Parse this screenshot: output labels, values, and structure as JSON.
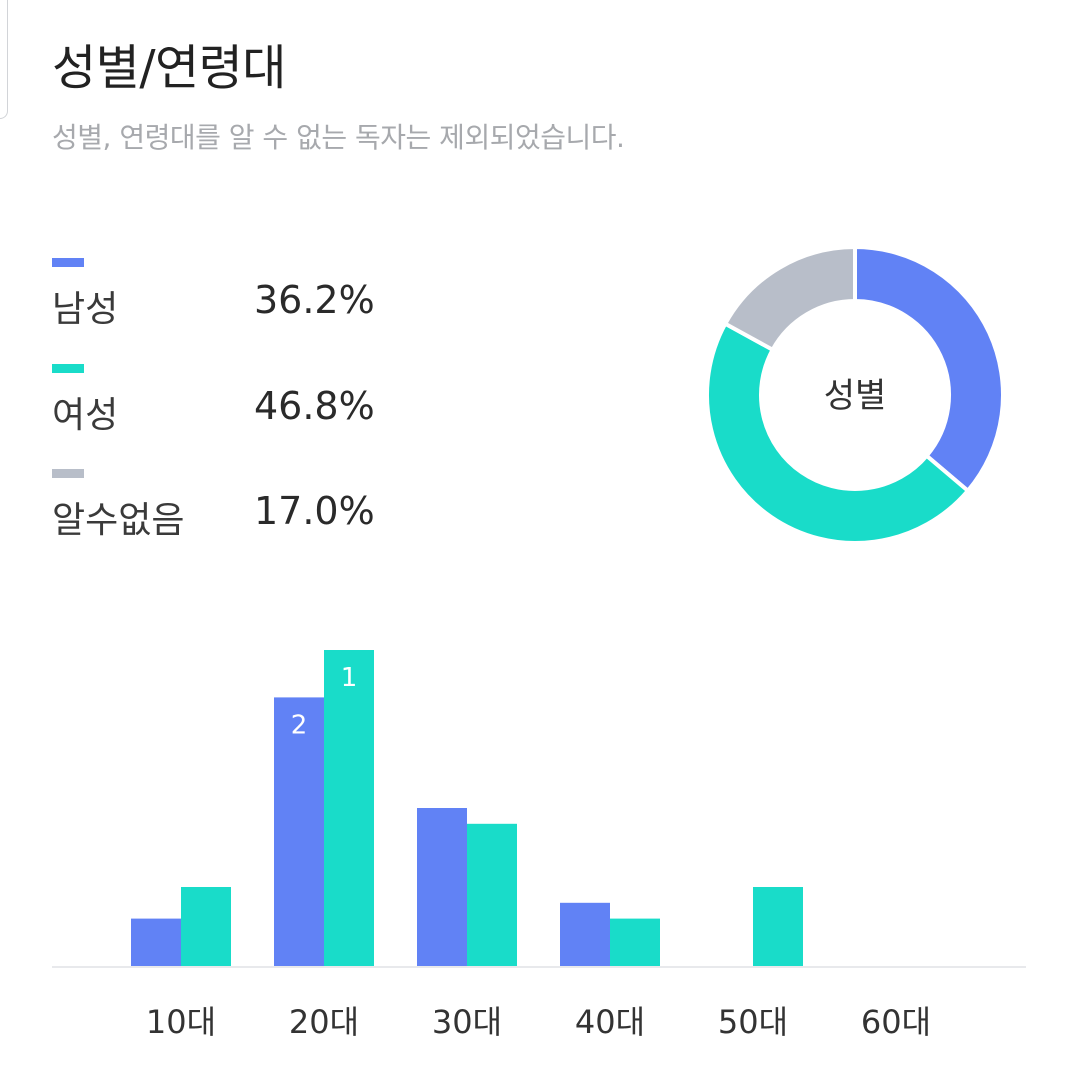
{
  "header": {
    "title": "성별/연령대",
    "subtitle": "성별, 연령대를 알 수 없는 독자는 제외되었습니다."
  },
  "colors": {
    "male": "#6182f5",
    "female": "#19dcc9",
    "unknown": "#b8bec9"
  },
  "legend": [
    {
      "label": "남성",
      "value": "36.2%",
      "color": "#6182f5"
    },
    {
      "label": "여성",
      "value": "46.8%",
      "color": "#19dcc9"
    },
    {
      "label": "알수없음",
      "value": "17.0%",
      "color": "#b8bec9"
    }
  ],
  "chart_data": [
    {
      "type": "pie",
      "variant": "donut",
      "center_label": "성별",
      "slices": [
        {
          "label": "남성",
          "value": 36.2,
          "color": "#6182f5"
        },
        {
          "label": "여성",
          "value": 46.8,
          "color": "#19dcc9"
        },
        {
          "label": "알수없음",
          "value": 17.0,
          "color": "#b8bec9"
        }
      ]
    },
    {
      "type": "bar",
      "categories": [
        "10대",
        "20대",
        "30대",
        "40대",
        "50대",
        "60대"
      ],
      "series": [
        {
          "name": "남성",
          "color": "#6182f5",
          "values": [
            3.0,
            17.0,
            10.0,
            4.0,
            0,
            0
          ]
        },
        {
          "name": "여성",
          "color": "#19dcc9",
          "values": [
            5.0,
            20.0,
            9.0,
            3.0,
            5.0,
            0
          ]
        }
      ],
      "rank_labels": [
        {
          "category": "20대",
          "series": "남성",
          "text": "2"
        },
        {
          "category": "20대",
          "series": "여성",
          "text": "1"
        }
      ],
      "ylim": [
        0,
        20
      ],
      "grid": false,
      "y_axis_visible": false
    }
  ]
}
